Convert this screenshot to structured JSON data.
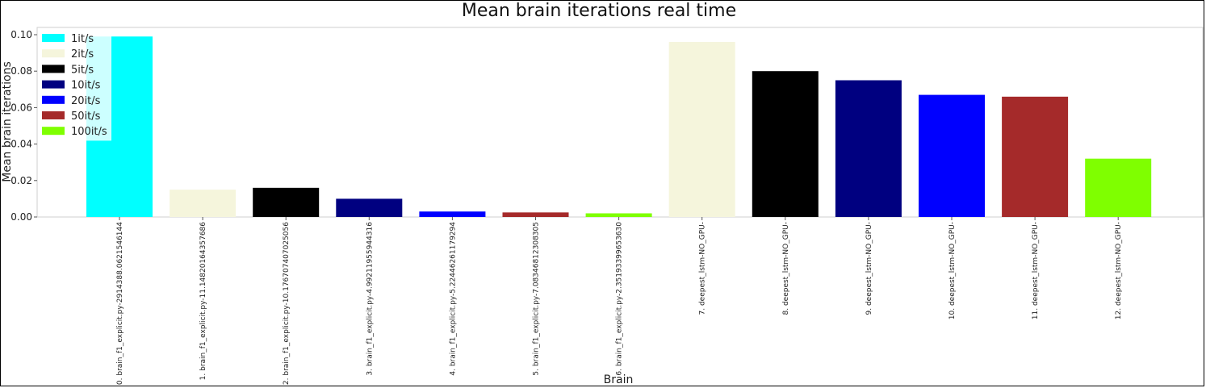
{
  "chart_data": {
    "type": "bar",
    "title": "Mean brain iterations real time",
    "xlabel": "Brain",
    "ylabel": "Mean brain iterations",
    "ylim": [
      0,
      0.1
    ],
    "yticks": [
      "0.00",
      "0.02",
      "0.04",
      "0.06",
      "0.08",
      "0.10"
    ],
    "grid": false,
    "legend_position": "top-left",
    "categories": [
      "0. brain_f1_explicit.py-2914388.0621546144",
      "1. brain_f1_explicit.py-11.14820164357686",
      "2. brain_f1_explicit.py-10.176707407025056",
      "3. brain_f1_explicit.py-4.99211955944316",
      "4. brain_f1_explicit.py-5.22446261179294",
      "5. brain_f1_explicit.py-7.08346812308305",
      "6. brain_f1_explicit.py-2.35193399653630",
      "7. deepest_lstm-NO_GPU-",
      "8. deepest_lstm-NO_GPU-",
      "9. deepest_lstm-NO_GPU-",
      "10. deepest_lstm-NO_GPU-",
      "11. deepest_lstm-NO_GPU-",
      "12. deepest_lstm-NO_GPU-"
    ],
    "values": [
      0.099,
      0.015,
      0.016,
      0.01,
      0.003,
      0.0025,
      0.002,
      0.096,
      0.08,
      0.075,
      0.067,
      0.066,
      0.032
    ],
    "bar_colors": [
      "#00ffff",
      "#f5f5dc",
      "#000000",
      "#000080",
      "#0000ff",
      "#a52a2a",
      "#7fff00",
      "#f5f5dc",
      "#000000",
      "#000080",
      "#0000ff",
      "#a52a2a",
      "#7fff00"
    ],
    "legend": [
      {
        "label": "1it/s",
        "color": "#00ffff"
      },
      {
        "label": "2it/s",
        "color": "#f5f5dc"
      },
      {
        "label": "5it/s",
        "color": "#000000"
      },
      {
        "label": "10it/s",
        "color": "#000080"
      },
      {
        "label": "20it/s",
        "color": "#0000ff"
      },
      {
        "label": "50it/s",
        "color": "#a52a2a"
      },
      {
        "label": "100it/s",
        "color": "#7fff00"
      }
    ]
  }
}
